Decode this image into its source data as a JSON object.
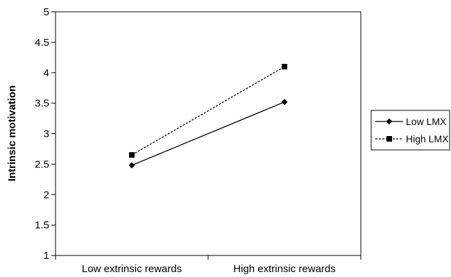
{
  "chart_data": {
    "type": "line",
    "title": "",
    "xlabel": "",
    "ylabel": "Intrinsic motivation",
    "categories": [
      "Low extrinsic rewards",
      "High extrinsic rewards"
    ],
    "ylim": [
      1,
      5
    ],
    "yticks": [
      "1",
      "1.5",
      "2",
      "2.5",
      "3",
      "3.5",
      "4",
      "4.5",
      "5"
    ],
    "grid": false,
    "legend_position": "right",
    "series": [
      {
        "name": "Low LMX",
        "values": [
          2.48,
          3.52
        ],
        "marker": "diamond",
        "line_style": "solid",
        "color": "#000000"
      },
      {
        "name": "High LMX",
        "values": [
          2.65,
          4.1
        ],
        "marker": "square",
        "line_style": "dashed",
        "color": "#000000"
      }
    ]
  }
}
